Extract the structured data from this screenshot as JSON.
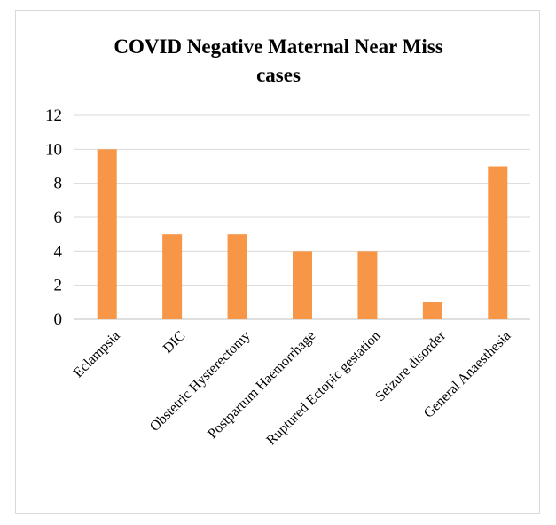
{
  "chart_data": {
    "type": "bar",
    "title": "COVID Negative Maternal Near Miss cases",
    "title_lines": [
      "COVID Negative Maternal Near Miss",
      "cases"
    ],
    "categories": [
      "Eclampsia",
      "DIC",
      "Obstetric Hysterectomy",
      "Postpartum Haemorrhage",
      "Ruptured Ectopic gestation",
      "Seizure disorder",
      "General Anaesthesia"
    ],
    "values": [
      10,
      5,
      5,
      4,
      4,
      1,
      9
    ],
    "xlabel": "",
    "ylabel": "",
    "ylim": [
      0,
      12
    ],
    "yticks": [
      0,
      2,
      4,
      6,
      8,
      10,
      12
    ],
    "grid": true,
    "legend": "none",
    "bar_color": "#F79646",
    "grid_color": "#d9d9d9"
  }
}
